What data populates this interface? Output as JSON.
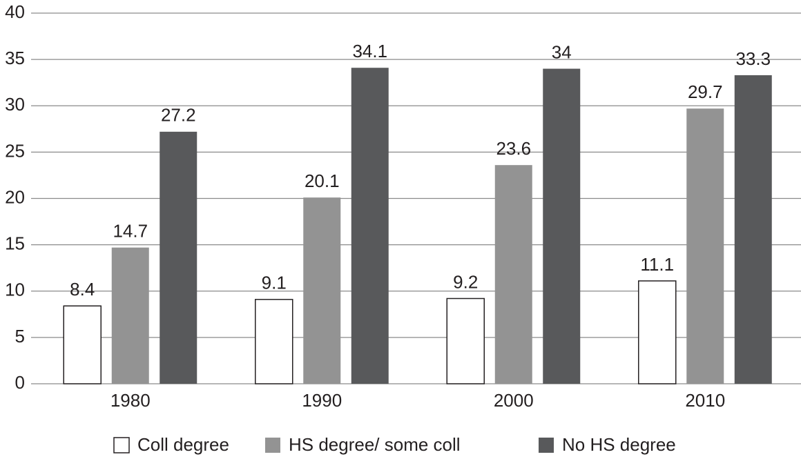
{
  "chart_data": {
    "type": "bar",
    "categories": [
      "1980",
      "1990",
      "2000",
      "2010"
    ],
    "series": [
      {
        "name": "Coll degree",
        "color": "#ffffff",
        "values": [
          8.4,
          9.1,
          9.2,
          11.1
        ]
      },
      {
        "name": "HS degree/ some coll",
        "color": "#939393",
        "values": [
          14.7,
          20.1,
          23.6,
          29.7
        ]
      },
      {
        "name": "No HS degree",
        "color": "#58595b",
        "values": [
          27.2,
          34.1,
          34,
          33.3
        ]
      }
    ],
    "ylim": [
      0,
      40
    ],
    "yticks": [
      0,
      5,
      10,
      15,
      20,
      25,
      30,
      35,
      40
    ],
    "grid": true,
    "legend": "bottom"
  }
}
